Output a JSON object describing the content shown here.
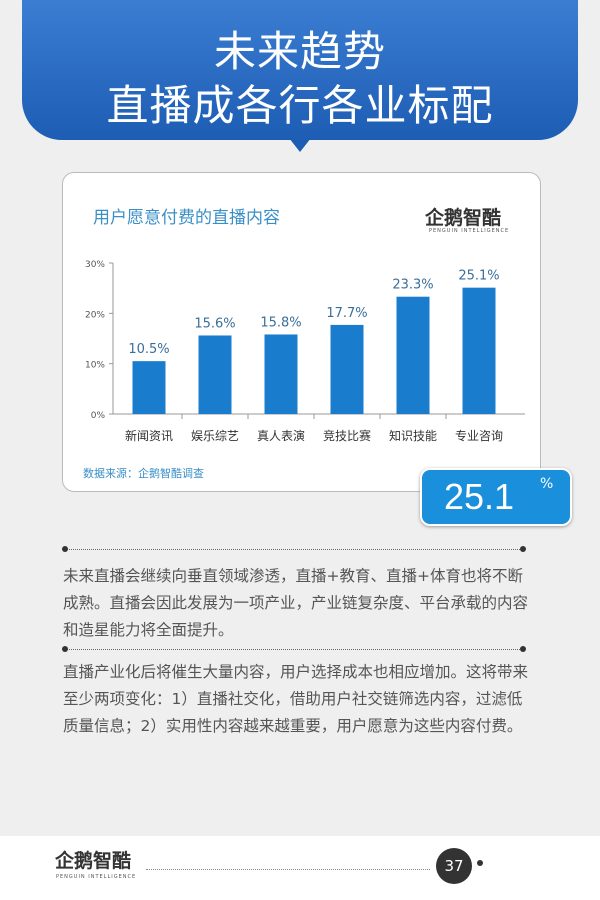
{
  "header": {
    "title_line1": "未来趋势",
    "title_line2": "直播成各行各业标配"
  },
  "brand": {
    "name": "企鹅智酷",
    "tagline": "PENGUIN INTELLIGENCE"
  },
  "chart_data": {
    "type": "bar",
    "title": "用户愿意付费的直播内容",
    "categories": [
      "新闻资讯",
      "娱乐综艺",
      "真人表演",
      "竞技比赛",
      "知识技能",
      "专业咨询"
    ],
    "values": [
      10.5,
      15.6,
      15.8,
      17.7,
      23.3,
      25.1
    ],
    "data_labels": [
      "10.5%",
      "15.6%",
      "15.8%",
      "17.7%",
      "23.3%",
      "25.1%"
    ],
    "yticks": [
      "0%",
      "10%",
      "20%",
      "30%"
    ],
    "ylim": [
      0,
      30
    ],
    "grid": false,
    "bar_color": "#1a7ccc",
    "source": "数据来源：企鹅智酷调查"
  },
  "highlight": {
    "value": "25.1",
    "unit": "%"
  },
  "paragraphs": [
    "未来直播会继续向垂直领域渗透，直播+教育、直播+体育也将不断成熟。直播会因此发展为一项产业，产业链复杂度、平台承载的内容和造星能力将全面提升。",
    "直播产业化后将催生大量内容，用户选择成本也相应增加。这将带来至少两项变化：1）直播社交化，借助用户社交链筛选内容，过滤低质量信息；2）实用性内容越来越重要，用户愿意为这些内容付费。"
  ],
  "footer": {
    "page": "37"
  }
}
